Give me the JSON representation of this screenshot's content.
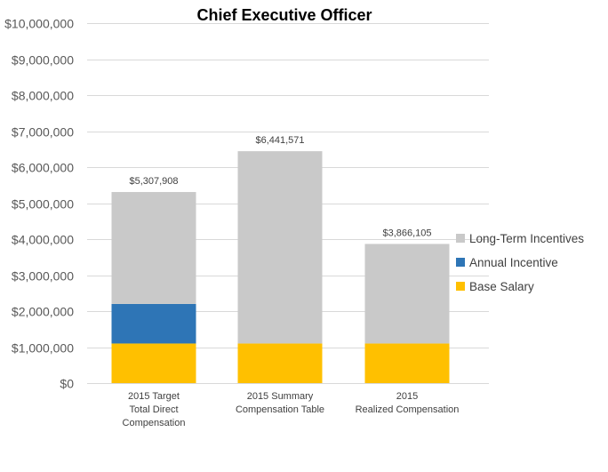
{
  "chart_data": {
    "type": "stacked-bar",
    "title": "Chief Executive Officer",
    "xlabel": "",
    "ylabel": "",
    "ylim": [
      0,
      10000000
    ],
    "grid": true,
    "legend_position": "right",
    "y_ticks": [
      {
        "value": 0,
        "label": "$0"
      },
      {
        "value": 1000000,
        "label": "$1,000,000"
      },
      {
        "value": 2000000,
        "label": "$2,000,000"
      },
      {
        "value": 3000000,
        "label": "$3,000,000"
      },
      {
        "value": 4000000,
        "label": "$4,000,000"
      },
      {
        "value": 5000000,
        "label": "$5,000,000"
      },
      {
        "value": 6000000,
        "label": "$6,000,000"
      },
      {
        "value": 7000000,
        "label": "$7,000,000"
      },
      {
        "value": 8000000,
        "label": "$8,000,000"
      },
      {
        "value": 9000000,
        "label": "$9,000,000"
      },
      {
        "value": 10000000,
        "label": "$10,000,000"
      }
    ],
    "categories": [
      [
        "2015 Target",
        "Total Direct",
        "Compensation"
      ],
      [
        "2015 Summary",
        "Compensation Table"
      ],
      [
        "2015",
        "Realized Compensation"
      ]
    ],
    "series": [
      {
        "name": "Base Salary",
        "color": "#ffc000",
        "values": [
          1100000,
          1100000,
          1100000
        ]
      },
      {
        "name": "Annual Incentive",
        "color": "#2e75b6",
        "values": [
          1100000,
          0,
          0
        ]
      },
      {
        "name": "Long-Term Incentives",
        "color": "#c9c9c9",
        "values": [
          3107908,
          5341571,
          2766105
        ]
      }
    ],
    "totals": [
      5307908,
      6441571,
      3866105
    ],
    "total_labels": [
      "$5,307,908",
      "$6,441,571",
      "$3,866,105"
    ],
    "legend_order": [
      "Long-Term Incentives",
      "Annual Incentive",
      "Base Salary"
    ]
  }
}
